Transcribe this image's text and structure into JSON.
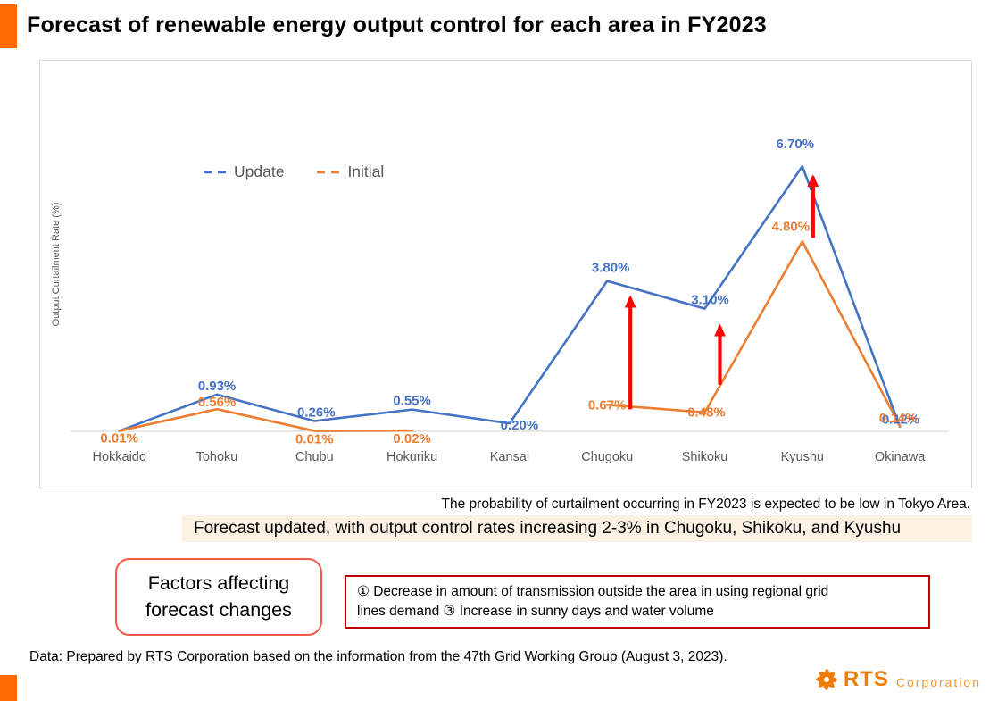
{
  "page": {
    "title": "Forecast of renewable energy output control for each area in FY2023",
    "note_tokyo": "The probability of  curtailment occurring in FY2023 is expected to be low in Tokyo Area.",
    "highlight": "Forecast updated, with output control rates increasing 2-3% in Chugoku, Shikoku, and Kyushu",
    "factors_box": {
      "line1": "Factors affecting",
      "line2": "forecast changes"
    },
    "factors_detail": {
      "line1": "① Decrease in amount of transmission outside the area in using regional grid",
      "line2": "lines demand ③ Increase in sunny days and water volume"
    },
    "source": "Data: Prepared by RTS Corporation based on the information from the 47th Grid Working Group (August 3, 2023).",
    "logo": {
      "name": "RTS",
      "suffix": "Corporation"
    }
  },
  "colors": {
    "accent_orange": "#FF6A00",
    "update_blue": "#4472C4",
    "initial_orange": "#ED7D31",
    "arrow_red": "#FF0000",
    "axis_gray": "#D9D9D9",
    "label_gray": "#595959",
    "highlight_cream": "#FBF2E3",
    "factors_border": "#F4594A",
    "detail_border": "#C00000",
    "logo_orange": "#F07D00"
  },
  "chart_data": {
    "type": "line",
    "title": "",
    "xlabel": "",
    "ylabel": "Output Curtailment Rate (%)",
    "unit": "%",
    "grid": false,
    "legend_position": "top-left-inside",
    "axis": {
      "ymin": 0,
      "ymax": 7,
      "y_ticks_visible": false
    },
    "categories": [
      "Hokkaido",
      "Tohoku",
      "Chubu",
      "Hokuriku",
      "Kansai",
      "Chugoku",
      "Shikoku",
      "Kyushu",
      "Okinawa"
    ],
    "series": [
      {
        "name": "Update",
        "color": "#4472C4",
        "style": "solid-line-dashed-legend",
        "values": [
          0.01,
          0.93,
          0.26,
          0.55,
          0.2,
          3.8,
          3.1,
          6.7,
          0.12
        ],
        "labels": [
          "",
          "0.93%",
          "0.26%",
          "0.55%",
          "0.20%",
          "3.80%",
          "3.10%",
          "6.70%",
          "0.12%"
        ]
      },
      {
        "name": "Initial",
        "color": "#ED7D31",
        "style": "solid-line-dashed-legend",
        "values": [
          0.01,
          0.56,
          0.01,
          0.02,
          null,
          0.67,
          0.48,
          4.8,
          0.14
        ],
        "labels": [
          "0.01%",
          "0.56%",
          "0.01%",
          "0.02%",
          "",
          "0.67%",
          "0.48%",
          "4.80%",
          "0.14%"
        ]
      }
    ],
    "annotations": {
      "increase_arrows": {
        "description": "Red vertical arrows from Initial value up to Update value",
        "color": "#FF0000",
        "categories": [
          "Chugoku",
          "Shikoku",
          "Kyushu"
        ]
      }
    }
  }
}
